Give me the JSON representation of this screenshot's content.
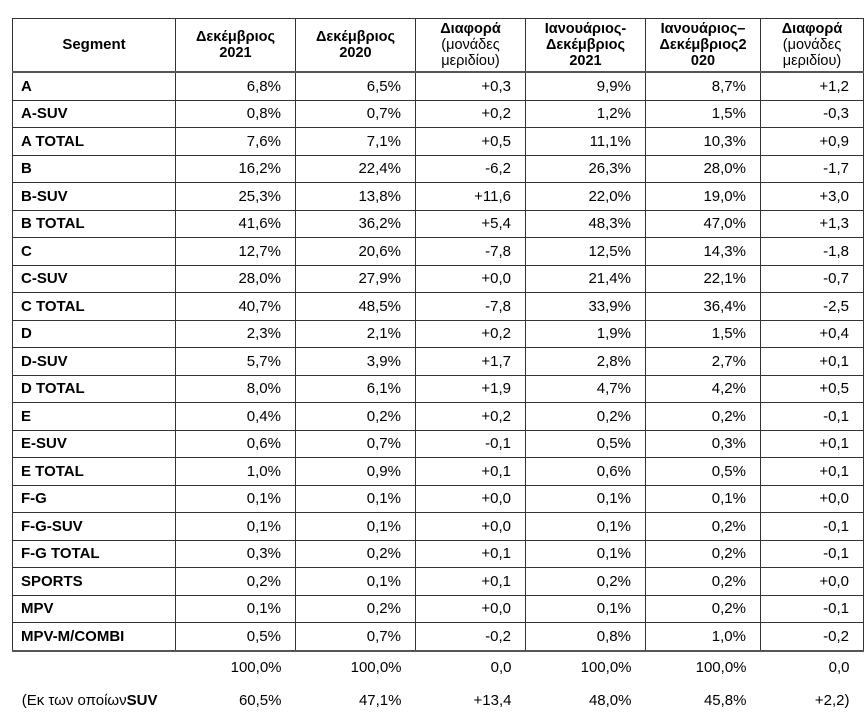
{
  "headers": [
    {
      "main": "Segment",
      "sub": ""
    },
    {
      "main": "Δεκέμβριος 2021",
      "sub": ""
    },
    {
      "main": "Δεκέμβριος 2020",
      "sub": ""
    },
    {
      "main": "Διαφορά",
      "sub": "(μονάδες μεριδίου)"
    },
    {
      "main": "Ιανουάριος- Δεκέμβριος 2021",
      "sub": ""
    },
    {
      "main": "Ιανουάριος– Δεκέμβριος2 020",
      "sub": ""
    },
    {
      "main": "Διαφορά",
      "sub": "(μονάδες μεριδίου)"
    }
  ],
  "rows": [
    [
      "A",
      "6,8%",
      "6,5%",
      "+0,3",
      "9,9%",
      "8,7%",
      "+1,2"
    ],
    [
      "A-SUV",
      "0,8%",
      "0,7%",
      "+0,2",
      "1,2%",
      "1,5%",
      "-0,3"
    ],
    [
      "A TOTAL",
      "7,6%",
      "7,1%",
      "+0,5",
      "11,1%",
      "10,3%",
      "+0,9"
    ],
    [
      "B",
      "16,2%",
      "22,4%",
      "-6,2",
      "26,3%",
      "28,0%",
      "-1,7"
    ],
    [
      "B-SUV",
      "25,3%",
      "13,8%",
      "+11,6",
      "22,0%",
      "19,0%",
      "+3,0"
    ],
    [
      "B TOTAL",
      "41,6%",
      "36,2%",
      "+5,4",
      "48,3%",
      "47,0%",
      "+1,3"
    ],
    [
      "C",
      "12,7%",
      "20,6%",
      "-7,8",
      "12,5%",
      "14,3%",
      "-1,8"
    ],
    [
      "C-SUV",
      "28,0%",
      "27,9%",
      "+0,0",
      "21,4%",
      "22,1%",
      "-0,7"
    ],
    [
      "C TOTAL",
      "40,7%",
      "48,5%",
      "-7,8",
      "33,9%",
      "36,4%",
      "-2,5"
    ],
    [
      "D",
      "2,3%",
      "2,1%",
      "+0,2",
      "1,9%",
      "1,5%",
      "+0,4"
    ],
    [
      "D-SUV",
      "5,7%",
      "3,9%",
      "+1,7",
      "2,8%",
      "2,7%",
      "+0,1"
    ],
    [
      "D TOTAL",
      "8,0%",
      "6,1%",
      "+1,9",
      "4,7%",
      "4,2%",
      "+0,5"
    ],
    [
      "E",
      "0,4%",
      "0,2%",
      "+0,2",
      "0,2%",
      "0,2%",
      "-0,1"
    ],
    [
      "E-SUV",
      "0,6%",
      "0,7%",
      "-0,1",
      "0,5%",
      "0,3%",
      "+0,1"
    ],
    [
      "E TOTAL",
      "1,0%",
      "0,9%",
      "+0,1",
      "0,6%",
      "0,5%",
      "+0,1"
    ],
    [
      "F-G",
      "0,1%",
      "0,1%",
      "+0,0",
      "0,1%",
      "0,1%",
      "+0,0"
    ],
    [
      "F-G-SUV",
      "0,1%",
      "0,1%",
      "+0,0",
      "0,1%",
      "0,2%",
      "-0,1"
    ],
    [
      "F-G TOTAL",
      "0,3%",
      "0,2%",
      "+0,1",
      "0,1%",
      "0,2%",
      "-0,1"
    ],
    [
      "SPORTS",
      "0,2%",
      "0,1%",
      "+0,1",
      "0,2%",
      "0,2%",
      "+0,0"
    ],
    [
      "MPV",
      "0,1%",
      "0,2%",
      "+0,0",
      "0,1%",
      "0,2%",
      "-0,1"
    ],
    [
      "MPV-M/COMBI",
      "0,5%",
      "0,7%",
      "-0,2",
      "0,8%",
      "1,0%",
      "-0,2"
    ]
  ],
  "total_row": [
    "",
    "100,0%",
    "100,0%",
    "0,0",
    "100,0%",
    "100,0%",
    "0,0"
  ],
  "suv_row": {
    "label_pre": "(Εκ των οποίων",
    "label_bold": "SUV",
    "values": [
      "60,5%",
      "47,1%",
      "+13,4",
      "48,0%",
      "45,8%",
      "+2,2)"
    ]
  }
}
